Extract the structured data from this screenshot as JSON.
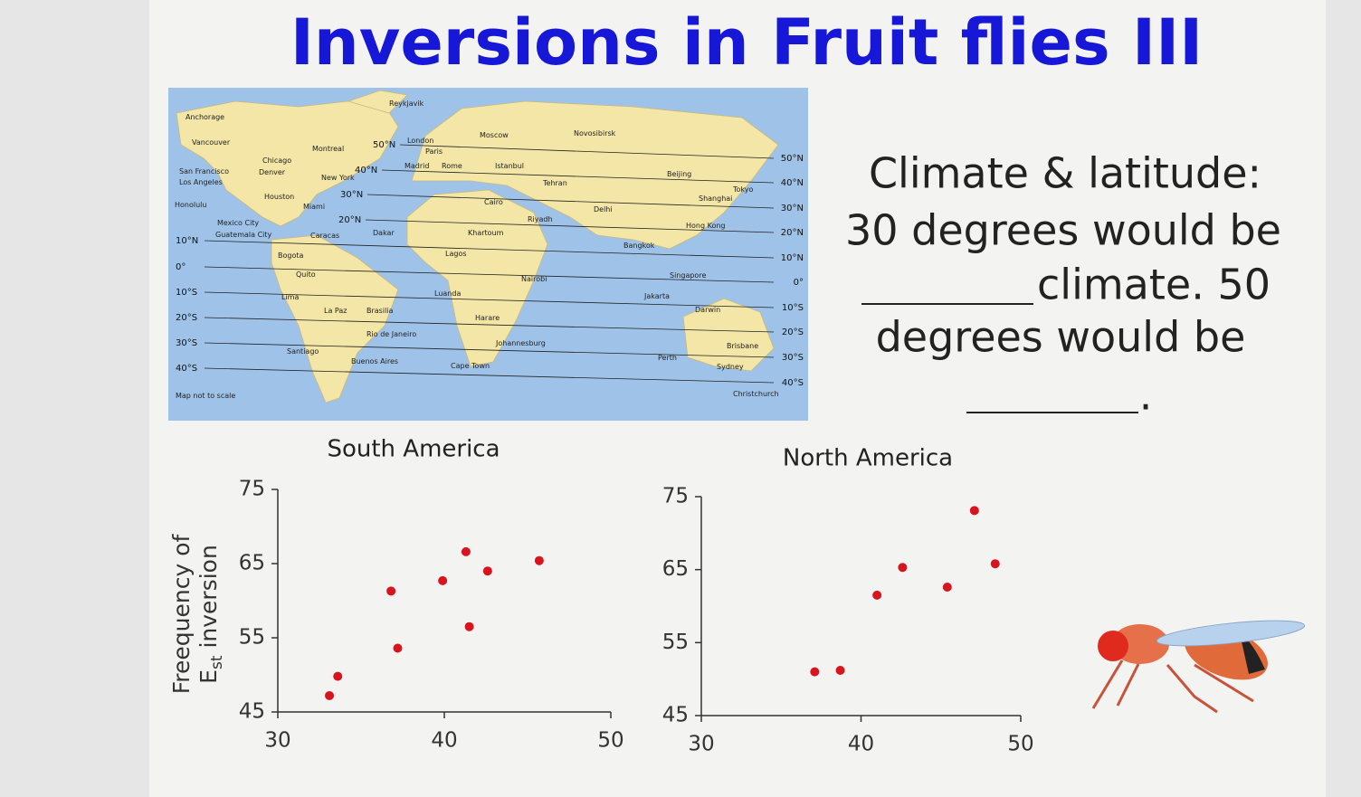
{
  "title": "Inversions in Fruit flies III",
  "prompt": [
    "Climate & latitude:",
    "30 degrees would be",
    "climate. 50",
    "degrees would be",
    "."
  ],
  "map": {
    "latitudes": [
      "50°N",
      "40°N",
      "30°N",
      "20°N",
      "10°N",
      "0°",
      "10°S",
      "20°S",
      "30°S",
      "40°S"
    ],
    "cities": [
      "Anchorage",
      "Reykjavik",
      "Vancouver",
      "Montreal",
      "Chicago",
      "San Francisco",
      "Los Angeles",
      "Denver",
      "New York",
      "Houston",
      "Miami",
      "Honolulu",
      "Mexico City",
      "Guatemala City",
      "Caracas",
      "Bogota",
      "Quito",
      "Lima",
      "La Paz",
      "Brasilia",
      "Rio de Janeiro",
      "Santiago",
      "Buenos Aires",
      "London",
      "Paris",
      "Madrid",
      "Rome",
      "Moscow",
      "Istanbul",
      "Cairo",
      "Dakar",
      "Lagos",
      "Khartoum",
      "Nairobi",
      "Luanda",
      "Harare",
      "Johannesburg",
      "Cape Town",
      "Riyadh",
      "Tehran",
      "Delhi",
      "Novosibirsk",
      "Beijing",
      "Tokyo",
      "Shanghai",
      "Hong Kong",
      "Bangkok",
      "Singapore",
      "Jakarta",
      "Darwin",
      "Perth",
      "Sydney",
      "Brisbane",
      "Christchurch"
    ],
    "scale_note": "Map not to scale"
  },
  "chart_data": [
    {
      "type": "scatter",
      "title": "South America",
      "ylabel": {
        "line1": "Freequency of",
        "main": "E",
        "sub": "st",
        "rest": " inversion"
      },
      "x": [
        33.1,
        33.6,
        36.8,
        37.2,
        39.9,
        41.3,
        41.5,
        42.6,
        45.7
      ],
      "series": [
        {
          "color": "#d8141e",
          "values": [
            47.2,
            49.8,
            61.3,
            53.6,
            62.7,
            66.6,
            56.5,
            64.0,
            65.4
          ]
        }
      ],
      "xlim": [
        30,
        50
      ],
      "xticks": [
        30,
        40,
        50
      ],
      "ylim": [
        45,
        75
      ],
      "yticks": [
        45,
        55,
        65,
        75
      ],
      "grid": false
    },
    {
      "type": "scatter",
      "title": "North America",
      "x": [
        37.1,
        38.7,
        41.0,
        42.6,
        45.4,
        47.1,
        48.4
      ],
      "series": [
        {
          "color": "#d8141e",
          "values": [
            51.0,
            51.2,
            61.5,
            65.3,
            62.6,
            73.1,
            65.8
          ]
        }
      ],
      "xlim": [
        30,
        50
      ],
      "xticks": [
        30,
        40,
        50
      ],
      "ylim": [
        45,
        75
      ],
      "yticks": [
        45,
        55,
        65,
        75
      ],
      "grid": false
    }
  ]
}
